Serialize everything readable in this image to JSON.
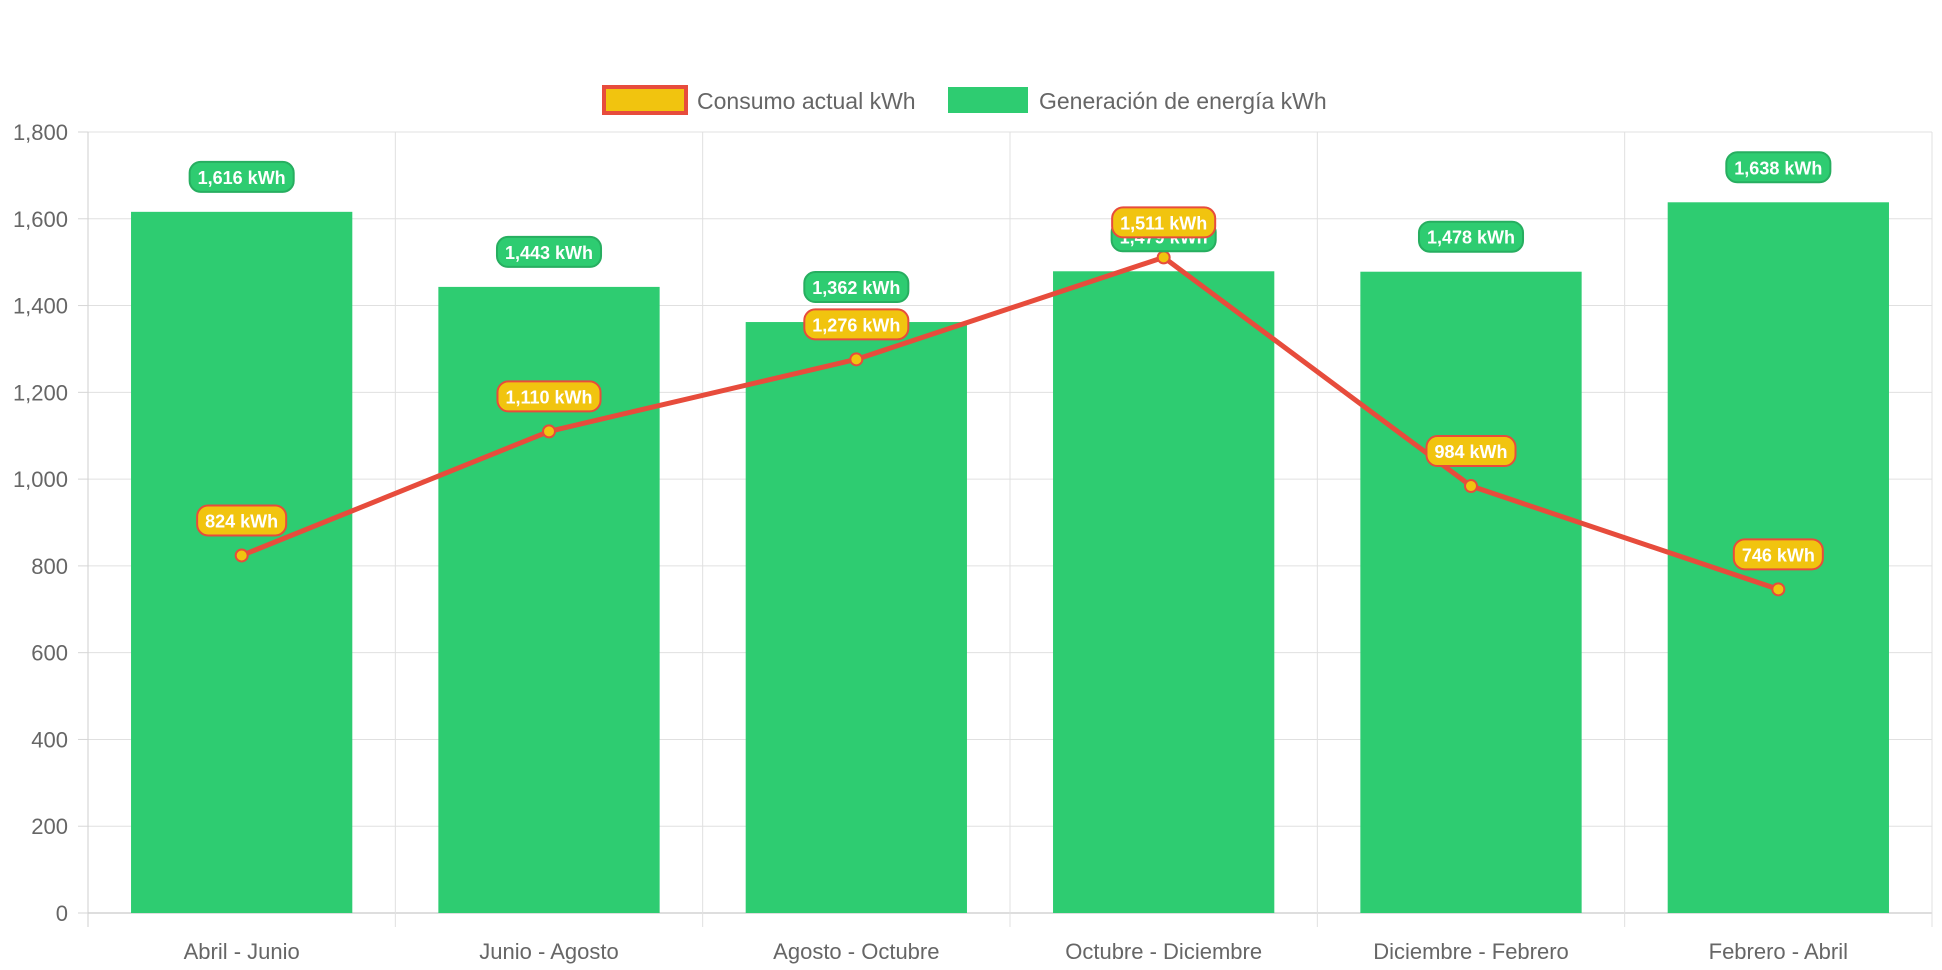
{
  "chart_data": {
    "type": "bar",
    "categories": [
      "Abril - Junio",
      "Junio - Agosto",
      "Agosto - Octubre",
      "Octubre - Diciembre",
      "Diciembre - Febrero",
      "Febrero - Abril"
    ],
    "ylim": [
      0,
      1800
    ],
    "yticks": [
      0,
      200,
      400,
      600,
      800,
      1000,
      1200,
      1400,
      1600,
      1800
    ],
    "ytick_labels": [
      "0",
      "200",
      "400",
      "600",
      "800",
      "1,000",
      "1,200",
      "1,400",
      "1,600",
      "1,800"
    ],
    "grid": true,
    "legend_position": "top-center",
    "series": [
      {
        "name": "Consumo actual kWh",
        "type": "line",
        "color": "#e74c3c",
        "fill_color": "#f1c40f",
        "values": [
          824,
          1110,
          1276,
          1511,
          984,
          746
        ],
        "labels": [
          "824 kWh",
          "1,110 kWh",
          "1,276 kWh",
          "1,511 kWh",
          "984 kWh",
          "746 kWh"
        ]
      },
      {
        "name": "Generación de energía kWh",
        "type": "bar",
        "color": "#2ecc71",
        "label_border_color": "#27ae60",
        "values": [
          1616,
          1443,
          1362,
          1479,
          1478,
          1638
        ],
        "labels": [
          "1,616 kWh",
          "1,443 kWh",
          "1,362 kWh",
          "1,479 kWh",
          "1,478 kWh",
          "1,638 kWh"
        ]
      }
    ]
  }
}
